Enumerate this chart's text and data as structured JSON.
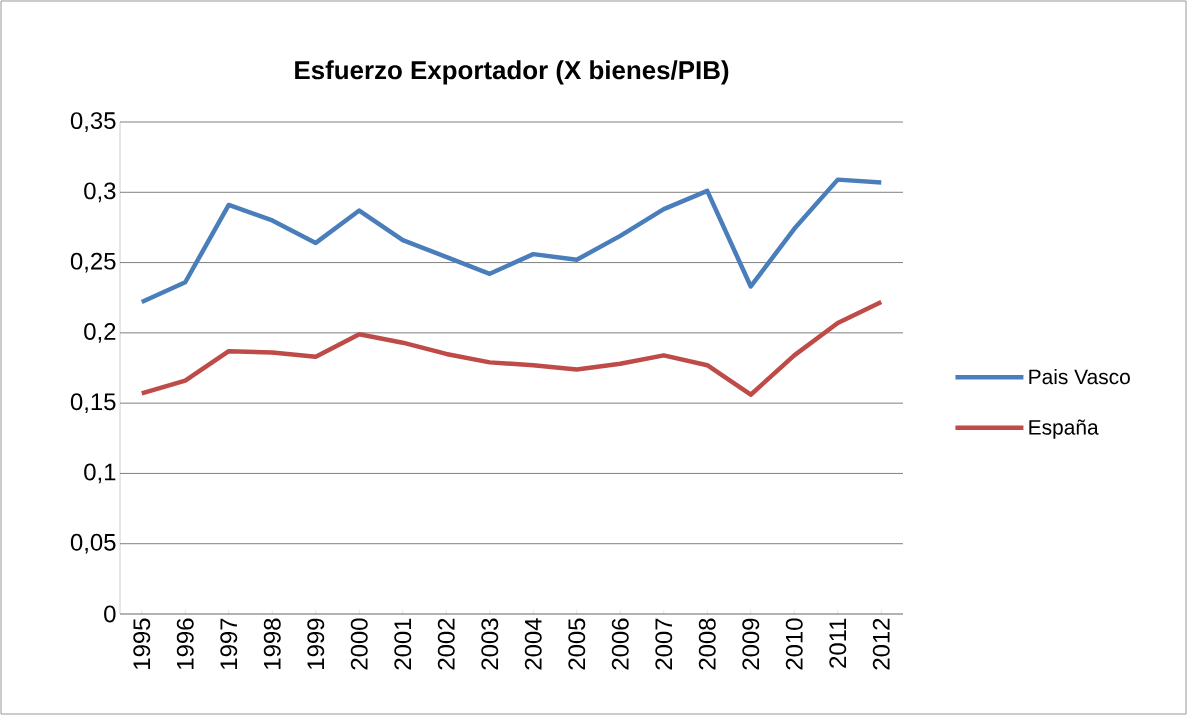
{
  "chart_data": {
    "type": "line",
    "title": "Esfuerzo Exportador (X bienes/PIB)",
    "categories": [
      "1995",
      "1996",
      "1997",
      "1998",
      "1999",
      "2000",
      "2001",
      "2002",
      "2003",
      "2004",
      "2005",
      "2006",
      "2007",
      "2008",
      "2009",
      "2010",
      "2011",
      "2012"
    ],
    "series": [
      {
        "name": "Pais Vasco",
        "color": "#4a7ebb",
        "values": [
          0.222,
          0.236,
          0.291,
          0.28,
          0.264,
          0.287,
          0.266,
          0.254,
          0.242,
          0.256,
          0.252,
          0.269,
          0.288,
          0.301,
          0.233,
          0.274,
          0.309,
          0.307
        ]
      },
      {
        "name": "España",
        "color": "#be4b48",
        "values": [
          0.157,
          0.166,
          0.187,
          0.186,
          0.183,
          0.199,
          0.193,
          0.185,
          0.179,
          0.177,
          0.174,
          0.178,
          0.184,
          0.177,
          0.156,
          0.184,
          0.207,
          0.222
        ]
      }
    ],
    "ylim": [
      0,
      0.35
    ],
    "yticks": [
      0,
      {
        "value": 0.05,
        "label": "0,05"
      },
      {
        "value": 0.1,
        "label": "0,1"
      },
      {
        "value": 0.15,
        "label": "0,15"
      },
      {
        "value": 0.2,
        "label": "0,2"
      },
      {
        "value": 0.25,
        "label": "0,25"
      },
      {
        "value": 0.3,
        "label": "0,3"
      },
      {
        "value": 0.35,
        "label": "0,35"
      }
    ],
    "grid": "y",
    "legend": "right",
    "marker": "none",
    "line_style": "solid"
  }
}
